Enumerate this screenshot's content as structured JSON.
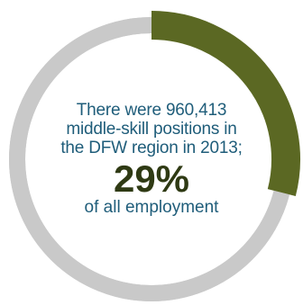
{
  "chart_data": {
    "type": "pie",
    "style": "donut",
    "values": [
      {
        "label": "middle-skill",
        "value": 29,
        "color": "#5b6823"
      },
      {
        "label": "other",
        "value": 71,
        "color": "#c9c9c9"
      }
    ]
  },
  "text": {
    "line1": "There were 960,413",
    "line2": "middle-skill positions in",
    "line3": "the DFW region in 2013;",
    "percent": "29%",
    "caption": "of all employment"
  },
  "colors": {
    "highlight": "#5b6823",
    "track": "#c9c9c9",
    "text_blue": "#1f5d7a",
    "percent_dark": "#2f3a14"
  }
}
